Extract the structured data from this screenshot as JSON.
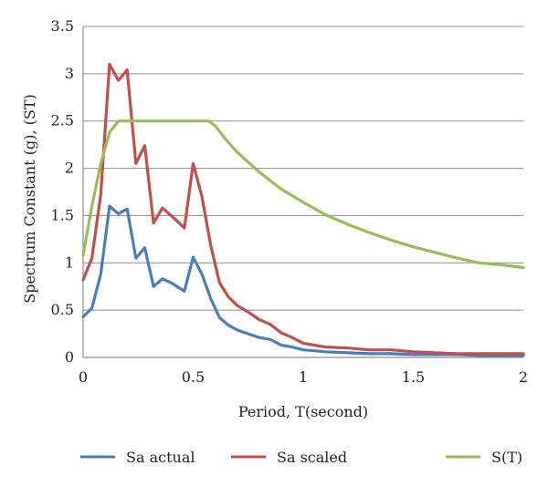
{
  "chart_data": {
    "type": "line",
    "title": "",
    "xlabel": "Period, T(second)",
    "ylabel": "Spectrum Constant (g), (ST)",
    "xlim": [
      0,
      2
    ],
    "ylim": [
      0,
      3.5
    ],
    "x_ticks": [
      "0",
      "0.5",
      "1",
      "1.5",
      "2"
    ],
    "y_ticks": [
      "0",
      "0.5",
      "1",
      "1.5",
      "2",
      "2.5",
      "3",
      "3.5"
    ],
    "grid": "horizontal",
    "legend_position": "bottom",
    "series": [
      {
        "name": "Sa actual",
        "color": "#4a7ebb",
        "points": [
          [
            0,
            0.43
          ],
          [
            0.04,
            0.52
          ],
          [
            0.08,
            0.88
          ],
          [
            0.12,
            1.6
          ],
          [
            0.16,
            1.52
          ],
          [
            0.2,
            1.57
          ],
          [
            0.24,
            1.05
          ],
          [
            0.28,
            1.16
          ],
          [
            0.32,
            0.75
          ],
          [
            0.36,
            0.83
          ],
          [
            0.4,
            0.79
          ],
          [
            0.46,
            0.7
          ],
          [
            0.5,
            1.06
          ],
          [
            0.54,
            0.88
          ],
          [
            0.58,
            0.62
          ],
          [
            0.62,
            0.42
          ],
          [
            0.66,
            0.34
          ],
          [
            0.7,
            0.29
          ],
          [
            0.75,
            0.25
          ],
          [
            0.8,
            0.21
          ],
          [
            0.85,
            0.19
          ],
          [
            0.9,
            0.13
          ],
          [
            0.95,
            0.11
          ],
          [
            1.0,
            0.08
          ],
          [
            1.05,
            0.07
          ],
          [
            1.1,
            0.06
          ],
          [
            1.2,
            0.05
          ],
          [
            1.3,
            0.04
          ],
          [
            1.4,
            0.04
          ],
          [
            1.5,
            0.03
          ],
          [
            1.6,
            0.03
          ],
          [
            1.7,
            0.03
          ],
          [
            1.8,
            0.02
          ],
          [
            1.9,
            0.02
          ],
          [
            2.0,
            0.02
          ]
        ]
      },
      {
        "name": "Sa scaled",
        "color": "#c0504d",
        "points": [
          [
            0,
            0.82
          ],
          [
            0.04,
            1.05
          ],
          [
            0.08,
            1.72
          ],
          [
            0.12,
            3.1
          ],
          [
            0.16,
            2.93
          ],
          [
            0.2,
            3.04
          ],
          [
            0.24,
            2.05
          ],
          [
            0.28,
            2.24
          ],
          [
            0.32,
            1.42
          ],
          [
            0.36,
            1.58
          ],
          [
            0.4,
            1.5
          ],
          [
            0.46,
            1.37
          ],
          [
            0.5,
            2.05
          ],
          [
            0.54,
            1.7
          ],
          [
            0.58,
            1.18
          ],
          [
            0.62,
            0.79
          ],
          [
            0.66,
            0.64
          ],
          [
            0.7,
            0.55
          ],
          [
            0.75,
            0.48
          ],
          [
            0.8,
            0.4
          ],
          [
            0.85,
            0.35
          ],
          [
            0.9,
            0.26
          ],
          [
            0.95,
            0.21
          ],
          [
            1.0,
            0.15
          ],
          [
            1.05,
            0.13
          ],
          [
            1.1,
            0.11
          ],
          [
            1.2,
            0.1
          ],
          [
            1.3,
            0.08
          ],
          [
            1.4,
            0.08
          ],
          [
            1.5,
            0.06
          ],
          [
            1.6,
            0.05
          ],
          [
            1.7,
            0.04
          ],
          [
            1.8,
            0.04
          ],
          [
            1.9,
            0.04
          ],
          [
            2.0,
            0.04
          ]
        ]
      },
      {
        "name": "S(T)",
        "color": "#9bbb59",
        "points": [
          [
            0,
            1.08
          ],
          [
            0.04,
            1.6
          ],
          [
            0.08,
            2.05
          ],
          [
            0.12,
            2.38
          ],
          [
            0.16,
            2.5
          ],
          [
            0.2,
            2.5
          ],
          [
            0.3,
            2.5
          ],
          [
            0.4,
            2.5
          ],
          [
            0.5,
            2.5
          ],
          [
            0.57,
            2.5
          ],
          [
            0.6,
            2.45
          ],
          [
            0.65,
            2.3
          ],
          [
            0.7,
            2.17
          ],
          [
            0.8,
            1.96
          ],
          [
            0.9,
            1.78
          ],
          [
            1.0,
            1.64
          ],
          [
            1.1,
            1.51
          ],
          [
            1.2,
            1.41
          ],
          [
            1.3,
            1.32
          ],
          [
            1.4,
            1.24
          ],
          [
            1.5,
            1.17
          ],
          [
            1.6,
            1.11
          ],
          [
            1.7,
            1.05
          ],
          [
            1.8,
            1.0
          ],
          [
            1.9,
            0.98
          ],
          [
            2.0,
            0.95
          ]
        ]
      }
    ]
  }
}
